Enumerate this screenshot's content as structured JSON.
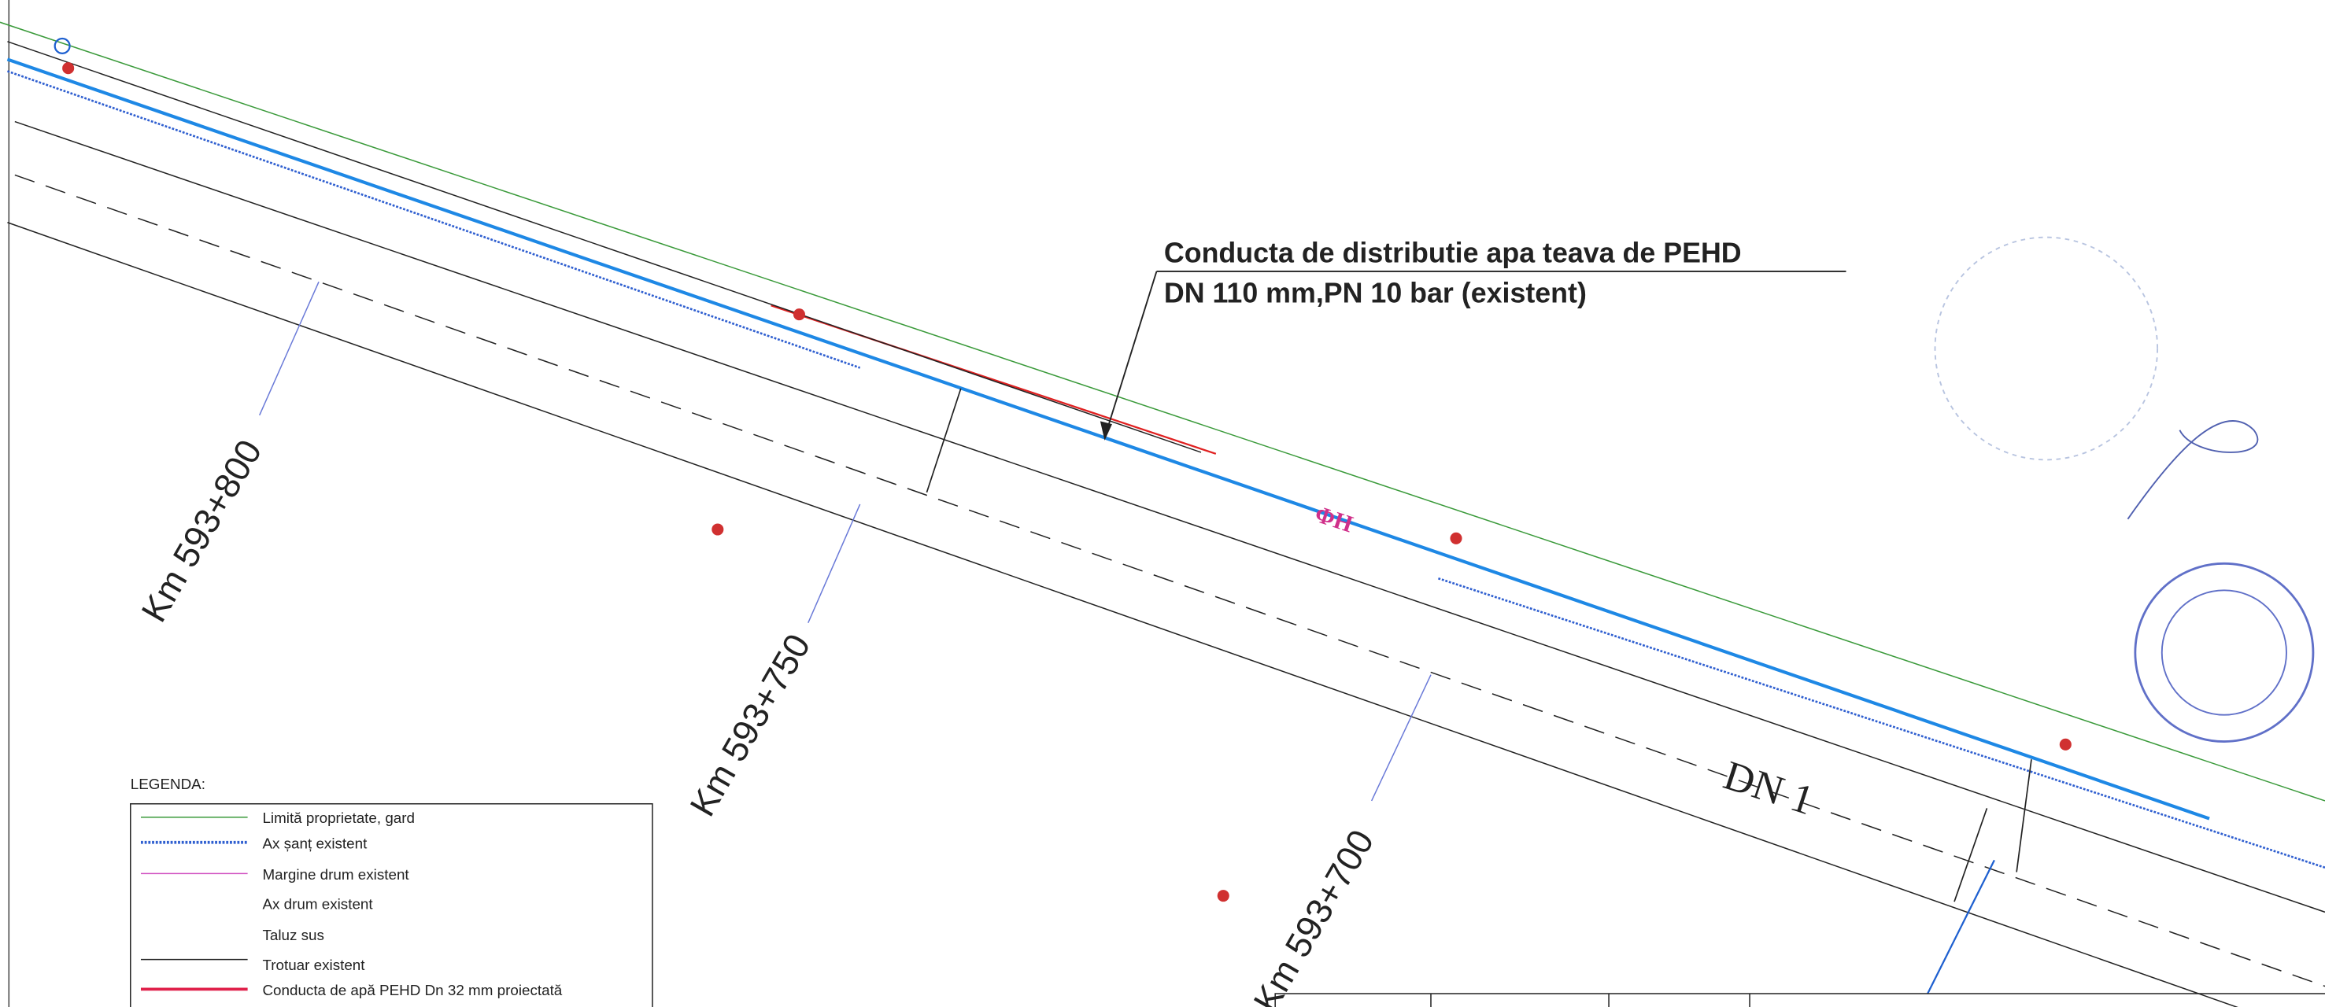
{
  "annotation": {
    "lines": [
      "Conducta de distributie apa teava de PEHD",
      "DN 110 mm,PN 10 bar (existent)"
    ]
  },
  "stations": [
    "Km 593+800",
    "Km 593+750",
    "Km 593+700"
  ],
  "road_label": "DN 1",
  "hydrant_label": "ΦH",
  "legend": {
    "title": "LEGENDA:",
    "items": [
      "Limită proprietate, gard",
      "Ax șanț existent",
      "Margine drum existent",
      "Ax drum existent",
      "Taluz sus",
      "Trotuar existent",
      "Conducta de apă PEHD Dn 32 mm proiectată"
    ]
  }
}
